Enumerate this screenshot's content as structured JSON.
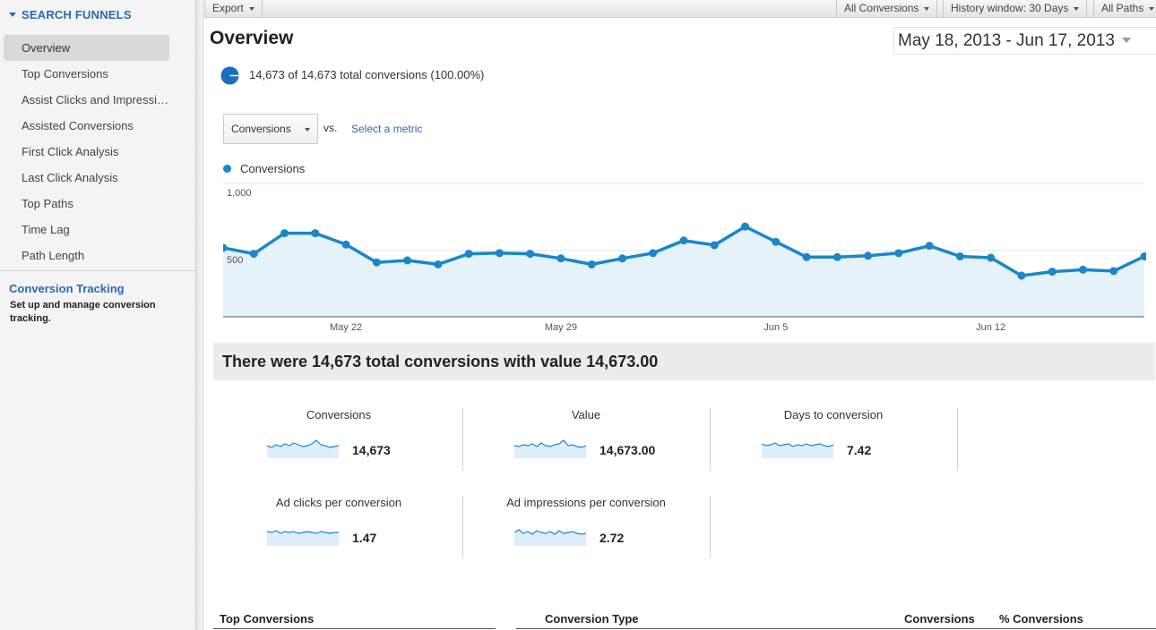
{
  "sidebar": {
    "section_title": "SEARCH FUNNELS",
    "items": [
      {
        "label": "Overview",
        "active": true
      },
      {
        "label": "Top Conversions"
      },
      {
        "label": "Assist Clicks and Impressions"
      },
      {
        "label": "Assisted Conversions"
      },
      {
        "label": "First Click Analysis"
      },
      {
        "label": "Last Click Analysis"
      },
      {
        "label": "Top Paths"
      },
      {
        "label": "Time Lag"
      },
      {
        "label": "Path Length"
      }
    ],
    "conversion_tracking": {
      "title": "Conversion Tracking",
      "description": "Set up and manage conversion tracking."
    }
  },
  "toolbar": {
    "export_label": "Export",
    "conversions_label": "All Conversions",
    "history_label": "History window: 30 Days",
    "paths_label": "All Paths"
  },
  "header": {
    "title": "Overview",
    "date_range": "May 18, 2013 - Jun 17, 2013"
  },
  "segment": {
    "text": "14,673 of 14,673 total conversions (100.00%)"
  },
  "metric_picker": {
    "selected": "Conversions",
    "vs_label": "vs.",
    "select_metric_label": "Select a metric"
  },
  "chart_data": {
    "type": "area",
    "series": [
      {
        "name": "Conversions",
        "values": [
          520,
          475,
          630,
          630,
          545,
          410,
          425,
          395,
          475,
          480,
          475,
          440,
          395,
          440,
          480,
          575,
          540,
          680,
          565,
          450,
          450,
          460,
          480,
          535,
          455,
          445,
          310,
          340,
          355,
          345,
          455
        ]
      }
    ],
    "x_tick_labels": [
      "May 22",
      "May 29",
      "Jun 5",
      "Jun 12"
    ],
    "y_tick_labels": [
      "1,000",
      "500"
    ],
    "ylim": [
      0,
      1000
    ],
    "color": "#1a87c9",
    "fill_color": "#e5f2fa",
    "grid": true
  },
  "summary": {
    "text": "There were 14,673 total conversions with value 14,673.00"
  },
  "metrics": [
    {
      "label": "Conversions",
      "value": "14,673"
    },
    {
      "label": "Value",
      "value": "14,673.00"
    },
    {
      "label": "Days to conversion",
      "value": "7.42"
    },
    {
      "label": "Ad clicks per conversion",
      "value": "1.47"
    },
    {
      "label": "Ad impressions per conversion",
      "value": "2.72"
    }
  ],
  "bottom": {
    "top_conversions": "Top Conversions",
    "conversion_type": "Conversion Type",
    "conversions": "Conversions",
    "pct_conversions": "% Conversions"
  }
}
